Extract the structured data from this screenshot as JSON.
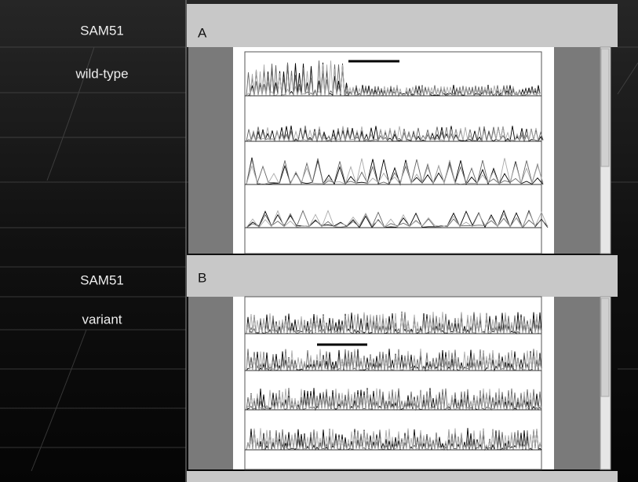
{
  "rows": [
    {
      "name": "SAM51",
      "label": "wild-type",
      "panel": "A"
    },
    {
      "name": "SAM51",
      "label": "variant",
      "panel": "B"
    }
  ]
}
